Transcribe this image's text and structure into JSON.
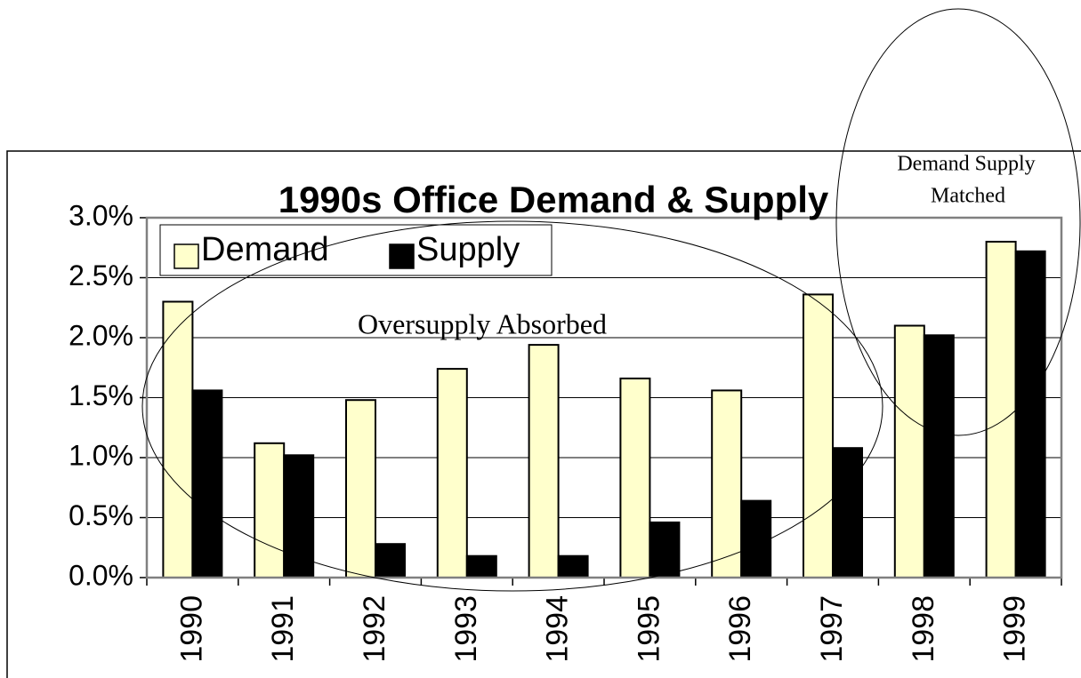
{
  "chart_data": {
    "type": "bar",
    "title": "1990s Office Demand & Supply",
    "categories": [
      "1990",
      "1991",
      "1992",
      "1993",
      "1994",
      "1995",
      "1996",
      "1997",
      "1998",
      "1999"
    ],
    "series": [
      {
        "name": "Demand",
        "color": "#ffffcc",
        "values": [
          2.3,
          1.12,
          1.48,
          1.74,
          1.94,
          1.66,
          1.56,
          2.36,
          2.1,
          2.8
        ]
      },
      {
        "name": "Supply",
        "color": "#000000",
        "values": [
          1.56,
          1.02,
          0.28,
          0.18,
          0.18,
          0.46,
          0.64,
          1.08,
          2.02,
          2.72
        ]
      }
    ],
    "ylim": [
      0,
      3
    ],
    "yticks": [
      {
        "value": 0,
        "label": "0.0%"
      },
      {
        "value": 0.5,
        "label": "0.5%"
      },
      {
        "value": 1,
        "label": "1.0%"
      },
      {
        "value": 1.5,
        "label": "1.5%"
      },
      {
        "value": 2,
        "label": "2.0%"
      },
      {
        "value": 2.5,
        "label": "2.5%"
      },
      {
        "value": 3,
        "label": "3.0%"
      }
    ],
    "grid": true,
    "legend": "top-left",
    "annotations": [
      "Oversupply Absorbed",
      "Demand Supply",
      "Matched"
    ]
  }
}
